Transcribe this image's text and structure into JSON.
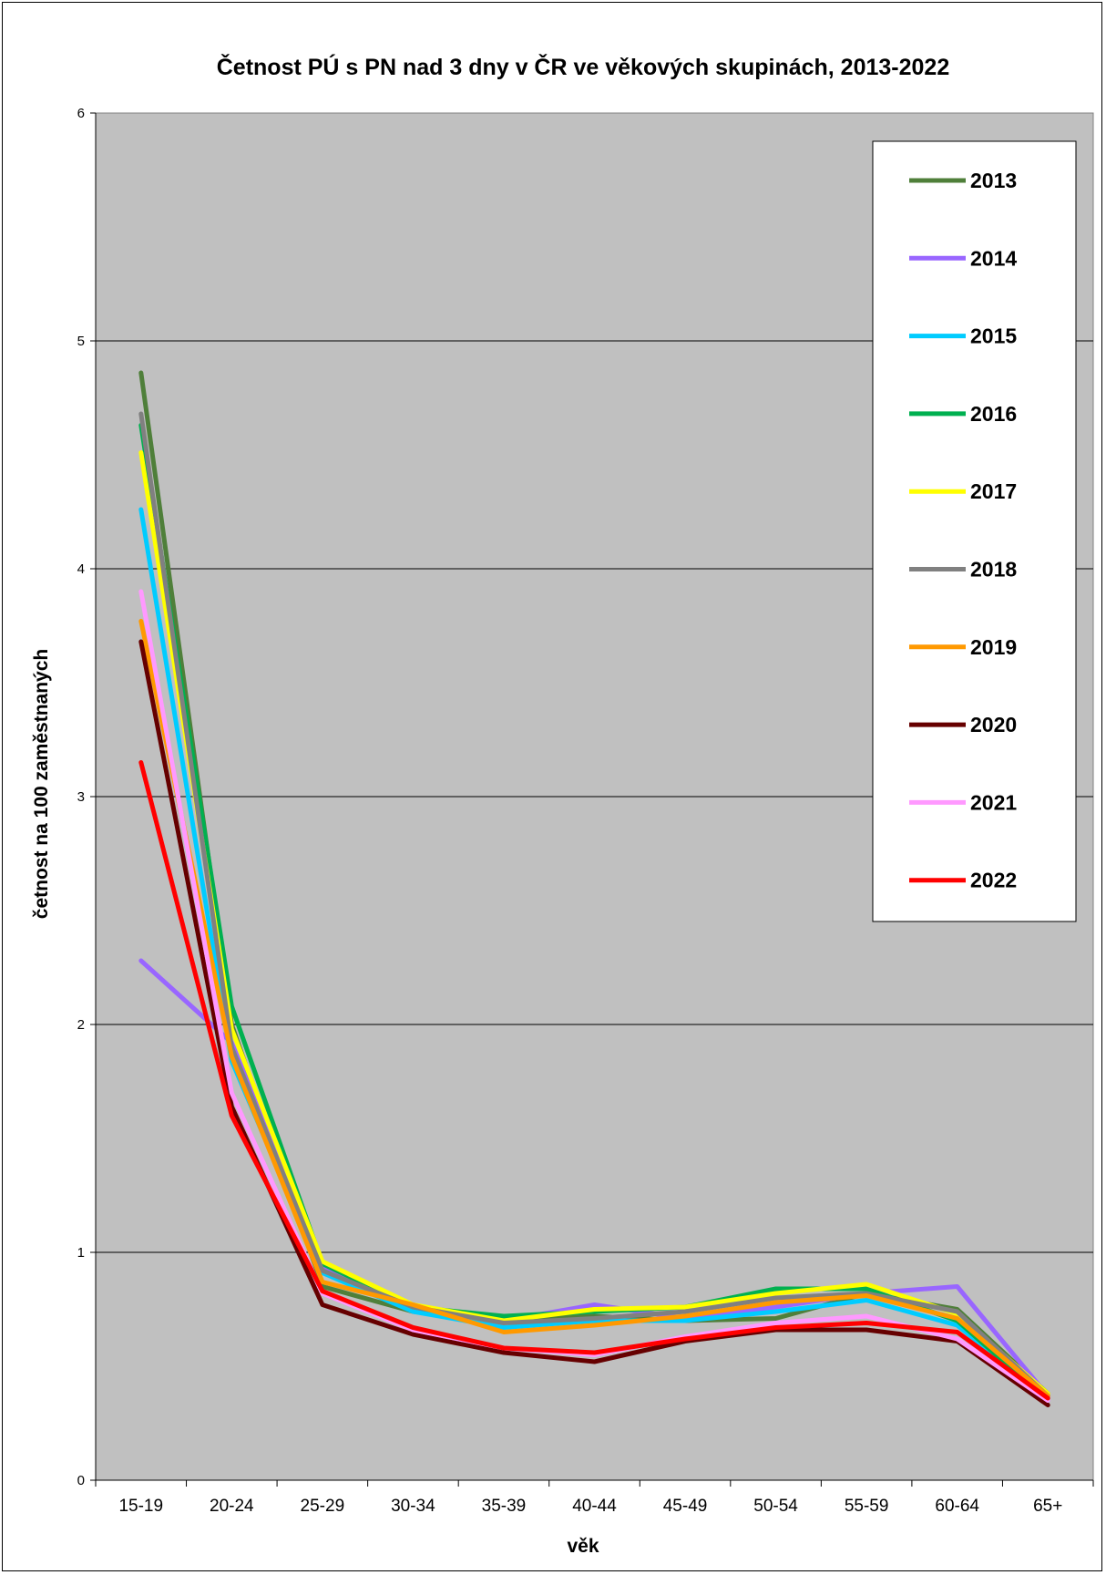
{
  "chart_data": {
    "type": "line",
    "title": "Četnost PÚ s PN nad 3 dny v ČR ve věkových skupinách, 2013-2022",
    "xlabel": "věk",
    "ylabel": "četnost na 100 zaměstnaných",
    "ylim": [
      0,
      6
    ],
    "yticks": [
      "0",
      "1",
      "2",
      "3",
      "4",
      "5",
      "6"
    ],
    "grid": true,
    "legend_position": "right",
    "plot_background": "#c0c0c0",
    "categories": [
      "15-19",
      "20-24",
      "25-29",
      "30-34",
      "35-39",
      "40-44",
      "45-49",
      "50-54",
      "55-59",
      "60-64",
      "65+"
    ],
    "series": [
      {
        "name": "2013",
        "color": "#4f7f3a",
        "values": [
          4.86,
          2.0,
          0.85,
          0.74,
          0.71,
          0.72,
          0.7,
          0.71,
          0.82,
          0.75,
          0.38
        ]
      },
      {
        "name": "2014",
        "color": "#9966ff",
        "values": [
          2.28,
          1.92,
          0.93,
          0.76,
          0.7,
          0.77,
          0.71,
          0.76,
          0.82,
          0.85,
          0.37
        ]
      },
      {
        "name": "2015",
        "color": "#00ccff",
        "values": [
          4.26,
          1.84,
          0.91,
          0.74,
          0.67,
          0.7,
          0.7,
          0.74,
          0.79,
          0.68,
          0.36
        ]
      },
      {
        "name": "2016",
        "color": "#00b050",
        "values": [
          4.63,
          2.08,
          0.95,
          0.76,
          0.72,
          0.74,
          0.76,
          0.84,
          0.84,
          0.7,
          0.35
        ]
      },
      {
        "name": "2017",
        "color": "#ffff00",
        "values": [
          4.51,
          1.98,
          0.96,
          0.77,
          0.7,
          0.75,
          0.76,
          0.82,
          0.86,
          0.73,
          0.38
        ]
      },
      {
        "name": "2018",
        "color": "#808080",
        "values": [
          4.68,
          1.9,
          0.92,
          0.76,
          0.69,
          0.71,
          0.74,
          0.8,
          0.82,
          0.74,
          0.37
        ]
      },
      {
        "name": "2019",
        "color": "#ff9900",
        "values": [
          3.77,
          1.86,
          0.87,
          0.77,
          0.65,
          0.68,
          0.72,
          0.78,
          0.81,
          0.71,
          0.37
        ]
      },
      {
        "name": "2020",
        "color": "#660000",
        "values": [
          3.68,
          1.64,
          0.77,
          0.64,
          0.56,
          0.52,
          0.61,
          0.66,
          0.66,
          0.61,
          0.33
        ]
      },
      {
        "name": "2021",
        "color": "#ff99ff",
        "values": [
          3.9,
          1.7,
          0.82,
          0.66,
          0.58,
          0.55,
          0.63,
          0.69,
          0.72,
          0.62,
          0.35
        ]
      },
      {
        "name": "2022",
        "color": "#ff0000",
        "values": [
          3.15,
          1.6,
          0.83,
          0.67,
          0.58,
          0.56,
          0.62,
          0.67,
          0.69,
          0.65,
          0.36
        ]
      }
    ]
  }
}
